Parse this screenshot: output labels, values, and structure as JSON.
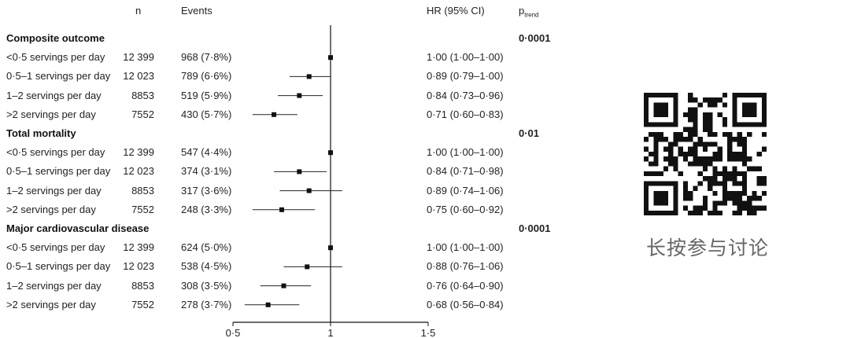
{
  "headers": {
    "n": "n",
    "events": "Events",
    "hr": "HR (95% CI)",
    "p_main": "p",
    "p_sub": "trend"
  },
  "groups": [
    {
      "title": "Composite outcome",
      "p_trend": "0·0001",
      "rows": [
        {
          "label": "<0·5 servings per day",
          "n": "12 399",
          "events": "968 (7·8%)",
          "hr_text": "1·00 (1·00–1·00)"
        },
        {
          "label": "0·5–1 servings per day",
          "n": "12 023",
          "events": "789 (6·6%)",
          "hr_text": "0·89 (0·79–1·00)"
        },
        {
          "label": "1–2 servings per day",
          "n": "8853",
          "events": "519 (5·9%)",
          "hr_text": "0·84 (0·73–0·96)"
        },
        {
          "label": ">2 servings per day",
          "n": "7552",
          "events": "430 (5·7%)",
          "hr_text": "0·71 (0·60–0·83)"
        }
      ]
    },
    {
      "title": "Total mortality",
      "p_trend": "0·01",
      "rows": [
        {
          "label": "<0·5 servings per day",
          "n": "12 399",
          "events": "547 (4·4%)",
          "hr_text": "1·00 (1·00–1·00)"
        },
        {
          "label": "0·5–1 servings per day",
          "n": "12 023",
          "events": "374 (3·1%)",
          "hr_text": "0·84 (0·71–0·98)"
        },
        {
          "label": "1–2 servings per day",
          "n": "8853",
          "events": "317 (3·6%)",
          "hr_text": "0·89 (0·74–1·06)"
        },
        {
          "label": ">2 servings per day",
          "n": "7552",
          "events": "248 (3·3%)",
          "hr_text": "0·75 (0·60–0·92)"
        }
      ]
    },
    {
      "title": "Major cardiovascular disease",
      "p_trend": "0·0001",
      "rows": [
        {
          "label": "<0·5 servings per day",
          "n": "12 399",
          "events": "624 (5·0%)",
          "hr_text": "1·00 (1·00–1·00)"
        },
        {
          "label": "0·5–1 servings per day",
          "n": "12 023",
          "events": "538 (4·5%)",
          "hr_text": "0·88 (0·76–1·06)"
        },
        {
          "label": "1–2 servings per day",
          "n": "8853",
          "events": "308 (3·5%)",
          "hr_text": "0·76 (0·64–0·90)"
        },
        {
          "label": ">2 servings per day",
          "n": "7552",
          "events": "278 (3·7%)",
          "hr_text": "0·68 (0·56–0·84)"
        }
      ]
    }
  ],
  "chart_data": {
    "type": "forest",
    "xlim": [
      0.5,
      1.5
    ],
    "reference": 1,
    "ticks": [
      0.5,
      1,
      1.5
    ],
    "tick_labels": [
      "0·5",
      "1",
      "1·5"
    ],
    "rows": [
      {
        "group": "Composite outcome",
        "hr": 1.0,
        "lo": 1.0,
        "hi": 1.0
      },
      {
        "group": "Composite outcome",
        "hr": 0.89,
        "lo": 0.79,
        "hi": 1.0
      },
      {
        "group": "Composite outcome",
        "hr": 0.84,
        "lo": 0.73,
        "hi": 0.96
      },
      {
        "group": "Composite outcome",
        "hr": 0.71,
        "lo": 0.6,
        "hi": 0.83
      },
      {
        "group": "Total mortality",
        "hr": 1.0,
        "lo": 1.0,
        "hi": 1.0
      },
      {
        "group": "Total mortality",
        "hr": 0.84,
        "lo": 0.71,
        "hi": 0.98
      },
      {
        "group": "Total mortality",
        "hr": 0.89,
        "lo": 0.74,
        "hi": 1.06
      },
      {
        "group": "Total mortality",
        "hr": 0.75,
        "lo": 0.6,
        "hi": 0.92
      },
      {
        "group": "Major cardiovascular disease",
        "hr": 1.0,
        "lo": 1.0,
        "hi": 1.0
      },
      {
        "group": "Major cardiovascular disease",
        "hr": 0.88,
        "lo": 0.76,
        "hi": 1.06
      },
      {
        "group": "Major cardiovascular disease",
        "hr": 0.76,
        "lo": 0.64,
        "hi": 0.9
      },
      {
        "group": "Major cardiovascular disease",
        "hr": 0.68,
        "lo": 0.56,
        "hi": 0.84
      }
    ]
  },
  "qr": {
    "caption": "长按参与讨论"
  }
}
